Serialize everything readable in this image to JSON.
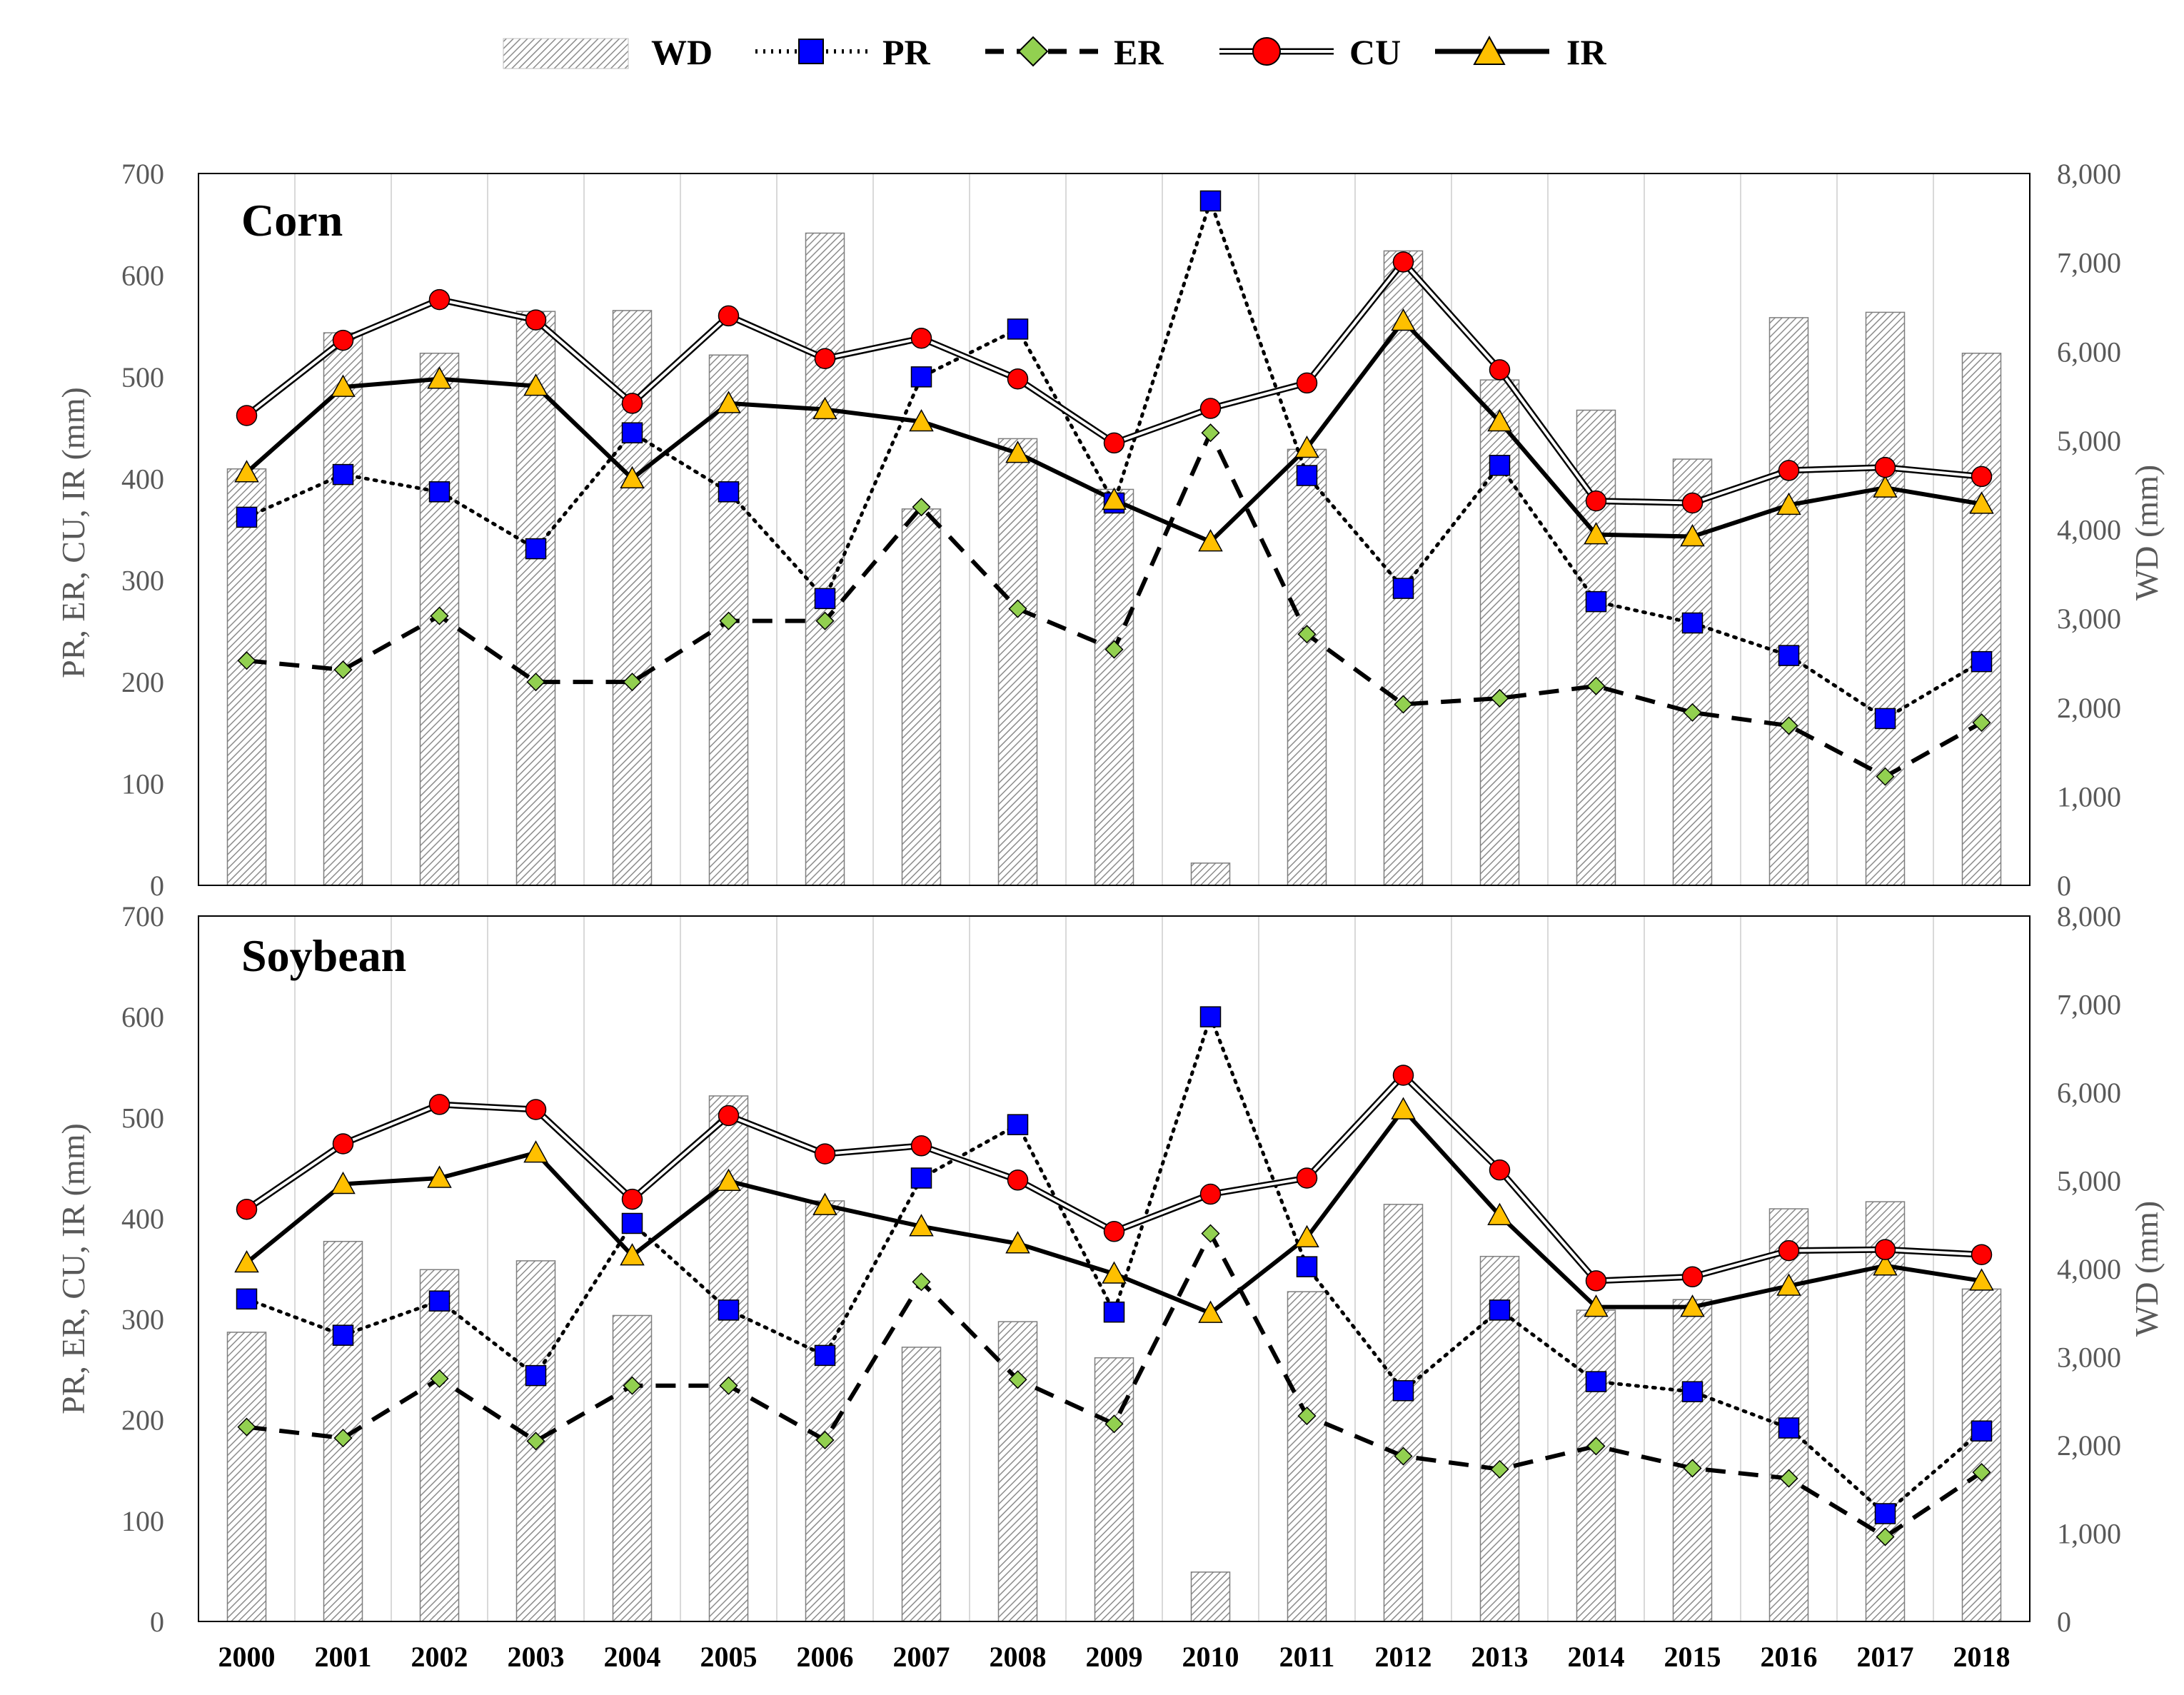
{
  "legend": [
    {
      "key": "WD",
      "label": "WD"
    },
    {
      "key": "PR",
      "label": "PR"
    },
    {
      "key": "ER",
      "label": "ER"
    },
    {
      "key": "CU",
      "label": "CU"
    },
    {
      "key": "IR",
      "label": "IR"
    }
  ],
  "colors": {
    "pr_marker": "#0000ff",
    "er_marker": "#92d050",
    "cu_marker": "#ff0000",
    "ir_marker": "#ffc000",
    "axis_text": "#595959",
    "gridline": "#d9d9d9",
    "bar_hatch": "#7f7f7f"
  },
  "chart_data": [
    {
      "type": "bar+line",
      "title": "Corn",
      "categories": [
        "2000",
        "2001",
        "2002",
        "2003",
        "2004",
        "2005",
        "2006",
        "2007",
        "2008",
        "2009",
        "2010",
        "2011",
        "2012",
        "2013",
        "2014",
        "2015",
        "2016",
        "2017",
        "2018"
      ],
      "ylabel": "PR, ER, CU, IR (mm)",
      "y2label": "WD (mm)",
      "ylim": [
        0,
        700
      ],
      "yticks": [
        "0",
        "100",
        "200",
        "300",
        "400",
        "500",
        "600",
        "700"
      ],
      "y2lim": [
        0,
        8000
      ],
      "y2ticks": [
        "0",
        "1,000",
        "2,000",
        "3,000",
        "4,000",
        "5,000",
        "6,000",
        "7,000",
        "8,000"
      ],
      "bars": {
        "name": "WD",
        "axis": "secondary",
        "values": [
          4680,
          6210,
          5980,
          6450,
          6460,
          5960,
          7330,
          4230,
          5020,
          4450,
          250,
          4900,
          7130,
          5680,
          5340,
          4790,
          6380,
          6440,
          5980
        ]
      },
      "series": [
        {
          "name": "PR",
          "values": [
            362,
            404,
            387,
            331,
            445,
            387,
            282,
            500,
            547,
            376,
            673,
            403,
            292,
            413,
            279,
            258,
            226,
            164,
            220
          ]
        },
        {
          "name": "ER",
          "values": [
            221,
            212,
            265,
            200,
            200,
            260,
            260,
            372,
            272,
            232,
            445,
            247,
            178,
            184,
            196,
            170,
            157,
            107,
            160
          ]
        },
        {
          "name": "CU",
          "values": [
            462,
            536,
            576,
            556,
            474,
            560,
            518,
            538,
            498,
            435,
            469,
            494,
            613,
            507,
            378,
            376,
            408,
            411,
            402
          ]
        },
        {
          "name": "IR",
          "values": [
            406,
            490,
            498,
            491,
            400,
            474,
            468,
            456,
            425,
            379,
            338,
            430,
            555,
            456,
            345,
            343,
            374,
            391,
            375
          ]
        }
      ]
    },
    {
      "type": "bar+line",
      "title": "Soybean",
      "categories": [
        "2000",
        "2001",
        "2002",
        "2003",
        "2004",
        "2005",
        "2006",
        "2007",
        "2008",
        "2009",
        "2010",
        "2011",
        "2012",
        "2013",
        "2014",
        "2015",
        "2016",
        "2017",
        "2018"
      ],
      "ylabel": "PR, ER, CU, IR (mm)",
      "y2label": "WD (mm)",
      "ylim": [
        0,
        700
      ],
      "yticks": [
        "0",
        "100",
        "200",
        "300",
        "400",
        "500",
        "600",
        "700"
      ],
      "y2lim": [
        0,
        8000
      ],
      "y2ticks": [
        "0",
        "1,000",
        "2,000",
        "3,000",
        "4,000",
        "5,000",
        "6,000",
        "7,000",
        "8,000"
      ],
      "bars": {
        "name": "WD",
        "axis": "secondary",
        "values": [
          3280,
          4310,
          3990,
          4090,
          3470,
          5960,
          4770,
          3110,
          3400,
          2990,
          560,
          3740,
          4730,
          4140,
          3530,
          3650,
          4680,
          4760,
          3770
        ]
      },
      "series": [
        {
          "name": "PR",
          "values": [
            320,
            284,
            318,
            244,
            395,
            309,
            264,
            440,
            493,
            307,
            600,
            352,
            229,
            309,
            238,
            228,
            192,
            107,
            189
          ]
        },
        {
          "name": "ER",
          "values": [
            193,
            182,
            241,
            179,
            234,
            234,
            180,
            337,
            240,
            196,
            385,
            204,
            164,
            151,
            174,
            152,
            142,
            84,
            148
          ]
        },
        {
          "name": "CU",
          "values": [
            409,
            474,
            513,
            508,
            419,
            502,
            464,
            472,
            438,
            387,
            424,
            440,
            542,
            448,
            338,
            342,
            368,
            369,
            364
          ]
        },
        {
          "name": "IR",
          "values": [
            356,
            434,
            440,
            465,
            363,
            437,
            413,
            392,
            375,
            345,
            306,
            381,
            508,
            403,
            312,
            312,
            333,
            353,
            338
          ]
        }
      ]
    }
  ]
}
